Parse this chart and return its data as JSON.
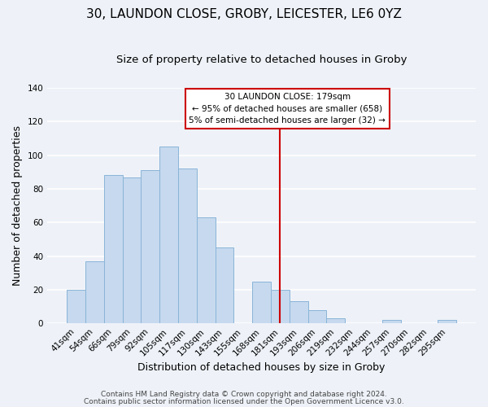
{
  "title": "30, LAUNDON CLOSE, GROBY, LEICESTER, LE6 0YZ",
  "subtitle": "Size of property relative to detached houses in Groby",
  "xlabel": "Distribution of detached houses by size in Groby",
  "ylabel": "Number of detached properties",
  "bar_labels": [
    "41sqm",
    "54sqm",
    "66sqm",
    "79sqm",
    "92sqm",
    "105sqm",
    "117sqm",
    "130sqm",
    "143sqm",
    "155sqm",
    "168sqm",
    "181sqm",
    "193sqm",
    "206sqm",
    "219sqm",
    "232sqm",
    "244sqm",
    "257sqm",
    "270sqm",
    "282sqm",
    "295sqm"
  ],
  "bar_values": [
    20,
    37,
    88,
    87,
    91,
    105,
    92,
    63,
    45,
    0,
    25,
    20,
    13,
    8,
    3,
    0,
    0,
    2,
    0,
    0,
    2
  ],
  "bar_color": "#c6d9ee",
  "bar_edge_color": "#8ab4d8",
  "vline_label_idx": 11,
  "vline_color": "#cc0000",
  "annotation_title": "30 LAUNDON CLOSE: 179sqm",
  "annotation_line1": "← 95% of detached houses are smaller (658)",
  "annotation_line2": "5% of semi-detached houses are larger (32) →",
  "annotation_box_facecolor": "#ffffff",
  "annotation_box_edgecolor": "#cc0000",
  "ylim": [
    0,
    140
  ],
  "yticks": [
    0,
    20,
    40,
    60,
    80,
    100,
    120,
    140
  ],
  "footer1": "Contains HM Land Registry data © Crown copyright and database right 2024.",
  "footer2": "Contains public sector information licensed under the Open Government Licence v3.0.",
  "background_color": "#eef2f8",
  "grid_color": "#ffffff",
  "title_fontsize": 11,
  "subtitle_fontsize": 9.5,
  "axis_label_fontsize": 9,
  "tick_fontsize": 7.5,
  "footer_fontsize": 6.5
}
